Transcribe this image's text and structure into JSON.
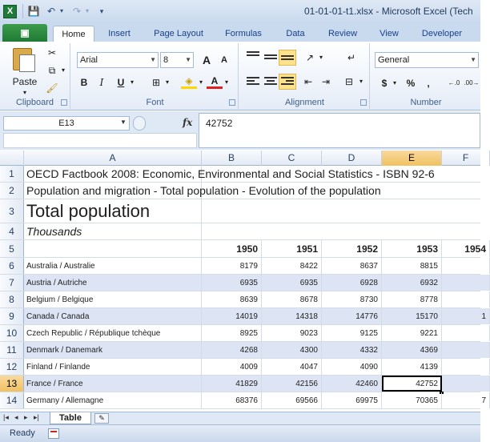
{
  "window": {
    "title": "01-01-01-t1.xlsx  -  Microsoft Excel (Tech",
    "app_icon_letter": "X",
    "qat": {
      "save": "💾",
      "undo": "↶",
      "redo": "↷",
      "customize": "▾"
    }
  },
  "ribbon": {
    "file_tab": "▣",
    "tabs": [
      "Home",
      "Insert",
      "Page Layout",
      "Formulas",
      "Data",
      "Review",
      "View",
      "Developer"
    ],
    "active_tab": "Home",
    "clipboard": {
      "label": "Clipboard",
      "paste": "Paste"
    },
    "font": {
      "label": "Font",
      "name": "Arial",
      "size": "8",
      "grow": "A",
      "shrink": "A",
      "bold": "B",
      "italic": "I",
      "underline": "U"
    },
    "alignment": {
      "label": "Alignment"
    },
    "number": {
      "label": "Number",
      "format": "General",
      "currency": "$",
      "percent": "%",
      "comma": ",",
      "inc_decimal": ".0→.00",
      "dec_decimal": ".00→.0"
    }
  },
  "formula_bar": {
    "name_box": "E13",
    "fx": "fx",
    "value": "42752"
  },
  "sheet": {
    "columns": [
      "A",
      "B",
      "C",
      "D",
      "E",
      "F"
    ],
    "selected_column": "E",
    "rows": [
      {
        "n": "1",
        "a": "OECD Factbook 2008: Economic, Environmental and Social Statistics - ISBN 92-6"
      },
      {
        "n": "2",
        "a": "Population and migration - Total population - Evolution of the population"
      },
      {
        "n": "3",
        "a": "Total population"
      },
      {
        "n": "4",
        "a": "Thousands"
      },
      {
        "n": "5",
        "a": "",
        "b": "1950",
        "c": "1951",
        "d": "1952",
        "e": "1953",
        "f": "1954"
      },
      {
        "n": "6",
        "a": "Australia / Australie",
        "b": "8179",
        "c": "8422",
        "d": "8637",
        "e": "8815",
        "f": ""
      },
      {
        "n": "7",
        "a": "Austria / Autriche",
        "b": "6935",
        "c": "6935",
        "d": "6928",
        "e": "6932",
        "f": ""
      },
      {
        "n": "8",
        "a": "Belgium / Belgique",
        "b": "8639",
        "c": "8678",
        "d": "8730",
        "e": "8778",
        "f": ""
      },
      {
        "n": "9",
        "a": "Canada / Canada",
        "b": "14019",
        "c": "14318",
        "d": "14776",
        "e": "15170",
        "f": "1"
      },
      {
        "n": "10",
        "a": "Czech Republic / République tchèque",
        "b": "8925",
        "c": "9023",
        "d": "9125",
        "e": "9221",
        "f": ""
      },
      {
        "n": "11",
        "a": "Denmark / Danemark",
        "b": "4268",
        "c": "4300",
        "d": "4332",
        "e": "4369",
        "f": ""
      },
      {
        "n": "12",
        "a": "Finland / Finlande",
        "b": "4009",
        "c": "4047",
        "d": "4090",
        "e": "4139",
        "f": ""
      },
      {
        "n": "13",
        "a": "France / France",
        "b": "41829",
        "c": "42156",
        "d": "42460",
        "e": "42752",
        "f": ""
      },
      {
        "n": "14",
        "a": "Germany / Allemagne",
        "b": "68376",
        "c": "69566",
        "d": "69975",
        "e": "70365",
        "f": "7"
      }
    ],
    "selected_row": "13"
  },
  "sheet_tabs": {
    "active": "Table"
  },
  "status": {
    "text": "Ready"
  }
}
